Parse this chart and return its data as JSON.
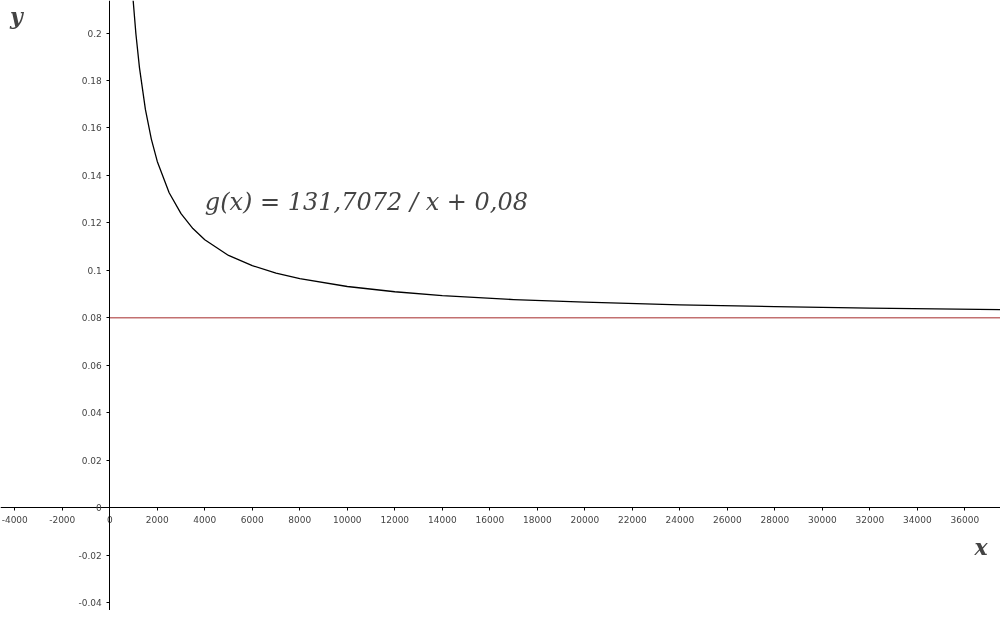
{
  "chart_data": {
    "type": "line",
    "xlabel": "x",
    "ylabel": "y",
    "x": [
      985,
      1100,
      1250,
      1500,
      1750,
      2000,
      2500,
      3000,
      3500,
      4000,
      5000,
      6000,
      7000,
      8000,
      10000,
      12000,
      14000,
      17000,
      20000,
      24000,
      28000,
      32000,
      37500
    ],
    "series": [
      {
        "color": "#000000",
        "values": [
          0.2137,
          0.1997,
          0.1854,
          0.1678,
          0.1553,
          0.1459,
          0.1327,
          0.1239,
          0.1176,
          0.1129,
          0.1063,
          0.102,
          0.0988,
          0.0965,
          0.0932,
          0.091,
          0.0894,
          0.0877,
          0.0866,
          0.0855,
          0.0847,
          0.0841,
          0.0835
        ]
      }
    ],
    "ref_lines": [
      {
        "axis": "y",
        "value": 0.08,
        "color": "#a52a2a"
      }
    ],
    "annotations": [
      "g(x) = 131,7072 / x + 0,08"
    ],
    "xlim": [
      -4600,
      37500
    ],
    "ylim": [
      -0.0433,
      0.2137
    ],
    "xticks": [
      -4000,
      -2000,
      0,
      2000,
      4000,
      6000,
      8000,
      10000,
      12000,
      14000,
      16000,
      18000,
      20000,
      22000,
      24000,
      26000,
      28000,
      30000,
      32000,
      34000,
      36000
    ],
    "yticks": [
      -0.04,
      -0.02,
      0,
      0.02,
      0.04,
      0.06,
      0.08,
      {
        "value": 0.1,
        "label": "0.1"
      },
      0.12,
      0.14,
      0.16,
      0.18,
      {
        "value": 0.2,
        "label": "0.2"
      }
    ],
    "grid": false,
    "marker": "none",
    "line_style": "solid"
  }
}
